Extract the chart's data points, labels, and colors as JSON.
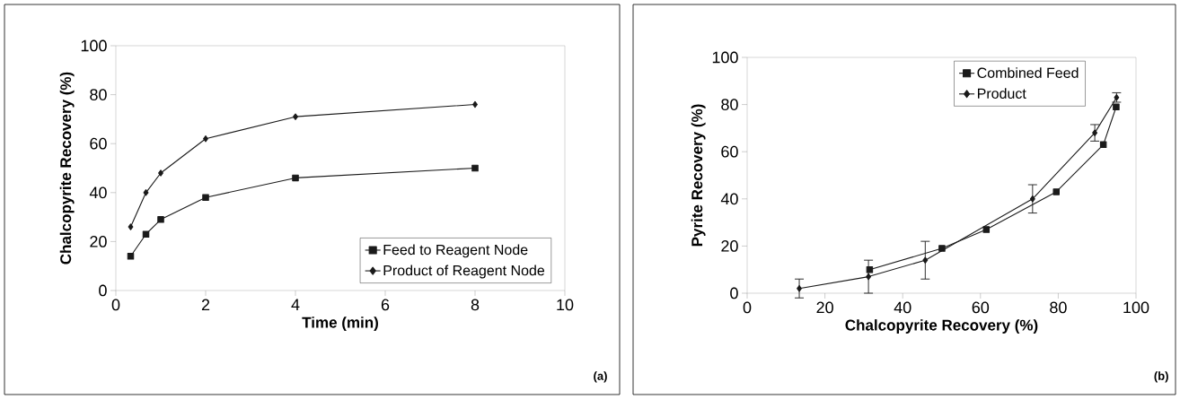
{
  "chart_data": [
    {
      "type": "line",
      "xlabel": "Time (min)",
      "ylabel": "Chalcopyrite Recovery (%)",
      "annotations": [
        "(a)"
      ],
      "xlim": [
        0,
        10
      ],
      "ylim": [
        0,
        100
      ],
      "xticks": [
        0,
        2,
        4,
        6,
        8,
        10
      ],
      "yticks": [
        0,
        20,
        40,
        60,
        80,
        100
      ],
      "legend": "bottom right",
      "series": [
        {
          "name": "Feed to Reagent Node",
          "color": "#1a1a1a",
          "marker": "square",
          "x": [
            0.33,
            0.67,
            1,
            2,
            4,
            8
          ],
          "values": [
            14,
            23,
            29,
            38,
            46,
            50
          ]
        },
        {
          "name": "Product of Reagent Node",
          "color": "#1a1a1a",
          "marker": "diamond",
          "x": [
            0.33,
            0.67,
            1,
            2,
            4,
            8
          ],
          "values": [
            26,
            40,
            48,
            62,
            71,
            76
          ]
        }
      ]
    },
    {
      "type": "line",
      "xlabel": "Chalcopyrite Recovery (%)",
      "ylabel": "Pyrite Recovery (%)",
      "annotations": [
        "(b)"
      ],
      "xlim": [
        0,
        100
      ],
      "ylim": [
        0,
        100
      ],
      "xticks": [
        0,
        20,
        40,
        60,
        80,
        100
      ],
      "yticks": [
        0,
        20,
        40,
        60,
        80,
        100
      ],
      "legend": "top right",
      "series": [
        {
          "name": "Combined Feed",
          "color": "#1a1a1a",
          "marker": "square",
          "x": [
            31.5,
            50.1,
            61.5,
            79.5,
            91.6,
            94.9
          ],
          "values": [
            10,
            19,
            27,
            43,
            63,
            79
          ]
        },
        {
          "name": "Product",
          "color": "#1a1a1a",
          "marker": "diamond",
          "x": [
            13.4,
            31.2,
            45.8,
            73.4,
            89.4,
            95
          ],
          "values": [
            2,
            7,
            14,
            40,
            68,
            83
          ],
          "errors": [
            4,
            7,
            8,
            6,
            3.5,
            2
          ]
        }
      ]
    }
  ]
}
